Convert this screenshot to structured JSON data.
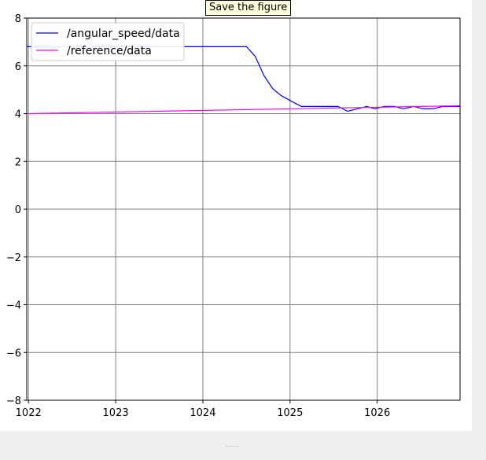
{
  "tooltip": {
    "text": "Save the figure"
  },
  "chart_data": {
    "type": "line",
    "title": "",
    "xlabel": "",
    "ylabel": "",
    "xlim": [
      1021.98,
      1026.95
    ],
    "ylim": [
      -8,
      8
    ],
    "xticks": [
      1022,
      1023,
      1024,
      1025,
      1026
    ],
    "yticks": [
      -8,
      -6,
      -4,
      -2,
      0,
      2,
      4,
      6,
      8
    ],
    "xtick_labels": [
      "1022",
      "1023",
      "1024",
      "1025",
      "1026"
    ],
    "ytick_labels": [
      "−8",
      "−6",
      "−4",
      "−2",
      "0",
      "2",
      "4",
      "6",
      "8"
    ],
    "grid": true,
    "legend_position": "upper-left",
    "series": [
      {
        "name": "/angular_speed/data",
        "color": "#0000ff",
        "points": [
          [
            1021.98,
            6.8
          ],
          [
            1024.5,
            6.8
          ],
          [
            1024.6,
            6.4
          ],
          [
            1024.7,
            5.6
          ],
          [
            1024.8,
            5.05
          ],
          [
            1024.9,
            4.75
          ],
          [
            1025.0,
            4.55
          ],
          [
            1025.13,
            4.3
          ],
          [
            1025.55,
            4.3
          ],
          [
            1025.66,
            4.1
          ],
          [
            1025.77,
            4.2
          ],
          [
            1025.88,
            4.3
          ],
          [
            1025.97,
            4.2
          ],
          [
            1026.08,
            4.3
          ],
          [
            1026.2,
            4.3
          ],
          [
            1026.3,
            4.2
          ],
          [
            1026.42,
            4.3
          ],
          [
            1026.53,
            4.2
          ],
          [
            1026.64,
            4.2
          ],
          [
            1026.75,
            4.3
          ],
          [
            1026.95,
            4.3
          ]
        ]
      },
      {
        "name": "/reference/data",
        "color": "#ff00ff",
        "points": [
          [
            1021.98,
            4.0
          ],
          [
            1026.95,
            4.33
          ]
        ]
      }
    ]
  }
}
